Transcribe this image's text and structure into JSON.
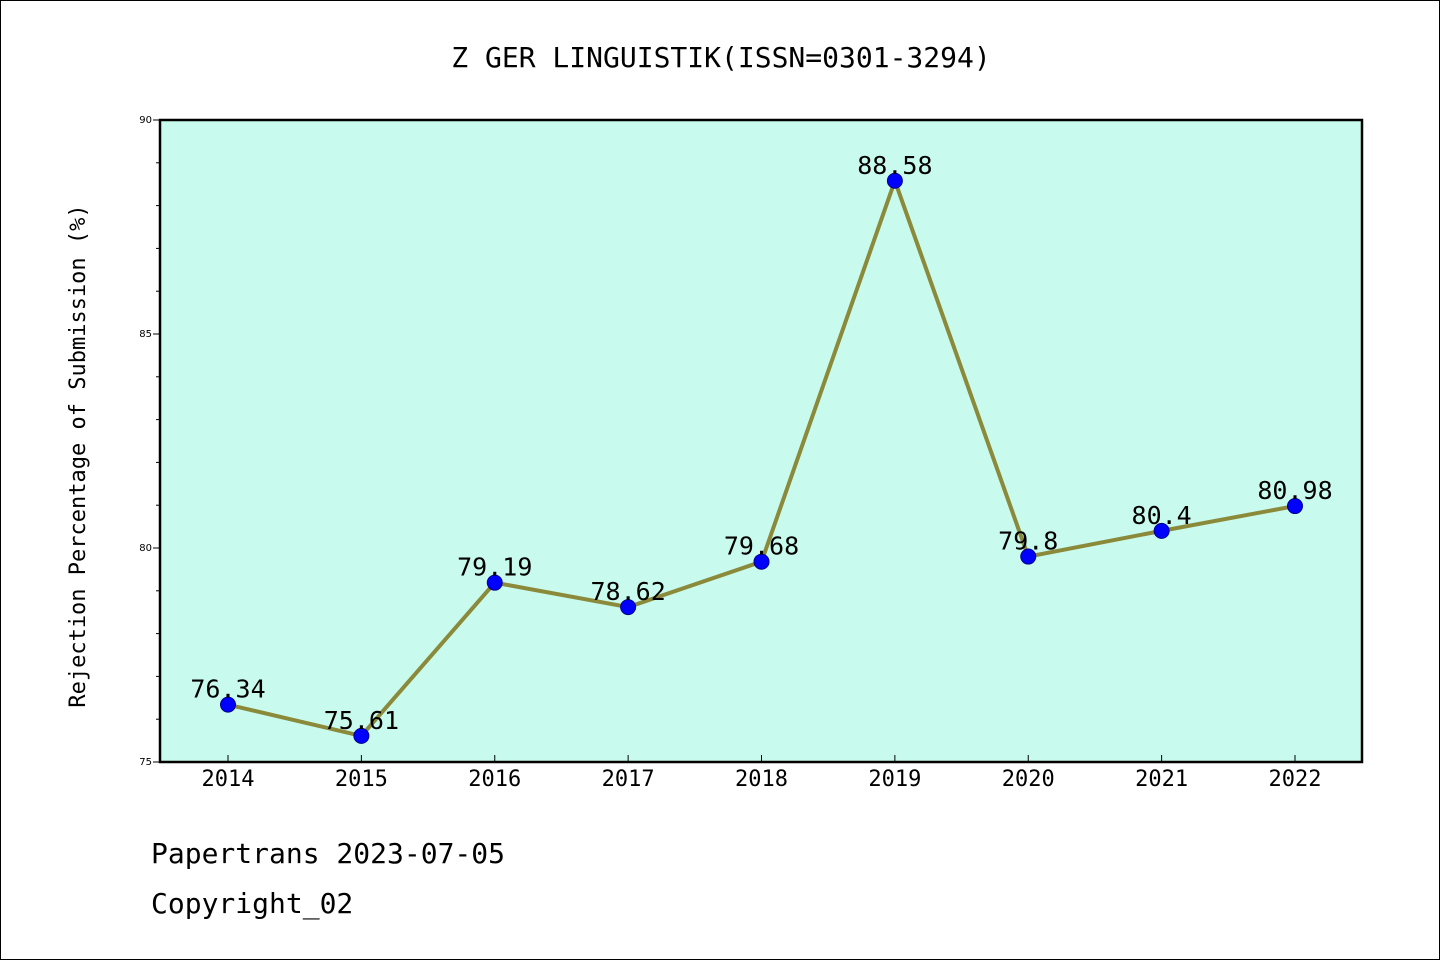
{
  "chart_data": {
    "type": "line",
    "title": "Z GER LINGUISTIK(ISSN=0301-3294)",
    "xlabel": "",
    "ylabel": "Rejection Percentage of Submission (%)",
    "categories": [
      "2014",
      "2015",
      "2016",
      "2017",
      "2018",
      "2019",
      "2020",
      "2021",
      "2022"
    ],
    "values": [
      76.34,
      75.61,
      79.19,
      78.62,
      79.68,
      88.58,
      79.8,
      80.4,
      80.98
    ],
    "data_labels": [
      "76.34",
      "75.61",
      "79.19",
      "78.62",
      "79.68",
      "88.58",
      "79.8",
      "80.4",
      "80.98"
    ],
    "ylim": [
      75,
      90
    ],
    "yticks": [
      75,
      80,
      85,
      90
    ],
    "ytick_labels": [
      "75",
      "80",
      "85",
      "90"
    ],
    "y_minor_step": 1,
    "grid": false,
    "legend": "none",
    "colors": {
      "plot_background": "#c8fbee",
      "line": "#8b8a3a",
      "marker": "#0000ff",
      "marker_edge": "#00008b",
      "axes": "#000000"
    }
  },
  "footer": {
    "line1": "Papertrans 2023-07-05",
    "line2": "Copyright_02"
  }
}
